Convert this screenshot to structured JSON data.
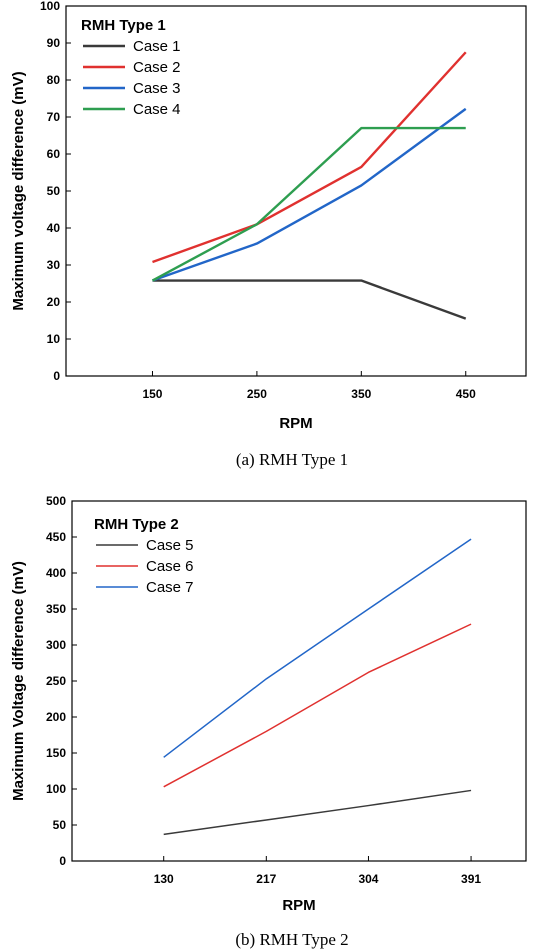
{
  "chart_data": [
    {
      "type": "line",
      "title": "",
      "legend_title": "RMH Type 1",
      "legend_position": "top-left",
      "caption": "(a) RMH Type 1",
      "xlabel": "RPM",
      "ylabel": "Maximum voltage difference (mV)",
      "categories": [
        "150",
        "250",
        "350",
        "450"
      ],
      "ylim": [
        0,
        100
      ],
      "yticks": [
        "0",
        "10",
        "20",
        "30",
        "40",
        "50",
        "60",
        "70",
        "80",
        "90",
        "100"
      ],
      "grid": false,
      "series": [
        {
          "name": "Case 1",
          "color": "#3a3a3a",
          "values": [
            25.8,
            25.8,
            25.8,
            15.5
          ]
        },
        {
          "name": "Case 2",
          "color": "#e0312f",
          "values": [
            30.8,
            41.0,
            56.5,
            87.5
          ]
        },
        {
          "name": "Case 3",
          "color": "#2266c8",
          "values": [
            25.8,
            35.8,
            51.5,
            72.2
          ]
        },
        {
          "name": "Case 4",
          "color": "#2e9e50",
          "values": [
            25.8,
            41.0,
            67.0,
            67.0
          ]
        }
      ]
    },
    {
      "type": "line",
      "title": "",
      "legend_title": "RMH Type 2",
      "legend_position": "top-left",
      "caption": "(b) RMH Type 2",
      "xlabel": "RPM",
      "ylabel": "Maximum Voltage difference (mV)",
      "categories": [
        "130",
        "217",
        "304",
        "391"
      ],
      "ylim": [
        0,
        500
      ],
      "yticks": [
        "0",
        "50",
        "100",
        "150",
        "200",
        "250",
        "300",
        "350",
        "400",
        "450",
        "500"
      ],
      "grid": false,
      "series": [
        {
          "name": "Case 5",
          "color": "#3a3a3a",
          "values": [
            37,
            57,
            77,
            98
          ]
        },
        {
          "name": "Case 6",
          "color": "#e0312f",
          "values": [
            103,
            180,
            262,
            329
          ]
        },
        {
          "name": "Case 7",
          "color": "#2266c8",
          "values": [
            144,
            253,
            350,
            447
          ]
        }
      ]
    }
  ]
}
